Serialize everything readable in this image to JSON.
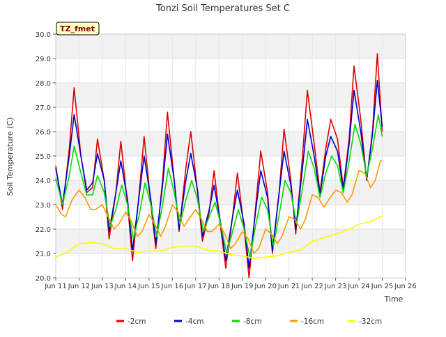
{
  "chart_data": {
    "type": "line",
    "title": "Tonzi Soil Temperatures Set C",
    "xlabel": "Time",
    "ylabel": "Soil Temperature (C)",
    "badge": "TZ_fmet",
    "ylim": [
      20.0,
      30.0
    ],
    "xlim": [
      11,
      26
    ],
    "y_ticks": [
      "20.0",
      "21.0",
      "22.0",
      "23.0",
      "24.0",
      "25.0",
      "26.0",
      "27.0",
      "28.0",
      "29.0",
      "30.0"
    ],
    "x_ticks": [
      {
        "value": 11,
        "label": "Jun 11"
      },
      {
        "value": 12,
        "label": "Jun 12"
      },
      {
        "value": 13,
        "label": "Jun 13"
      },
      {
        "value": 14,
        "label": "Jun 14"
      },
      {
        "value": 15,
        "label": "Jun 15"
      },
      {
        "value": 16,
        "label": "Jun 16"
      },
      {
        "value": 17,
        "label": "Jun 17"
      },
      {
        "value": 18,
        "label": "Jun 18"
      },
      {
        "value": 19,
        "label": "Jun 19"
      },
      {
        "value": 20,
        "label": "Jun 20"
      },
      {
        "value": 21,
        "label": "Jun 21"
      },
      {
        "value": 22,
        "label": "Jun 22"
      },
      {
        "value": 23,
        "label": "Jun 23"
      },
      {
        "value": 24,
        "label": "Jun 24"
      },
      {
        "value": 25,
        "label": "Jun 25"
      },
      {
        "value": 26,
        "label": "Jun 26"
      }
    ],
    "grid": true,
    "legend_position": "bottom-center",
    "series": [
      {
        "name": "-2cm",
        "color": "#dd0000",
        "points": [
          [
            11.0,
            24.6
          ],
          [
            11.29,
            22.8
          ],
          [
            11.58,
            25.3
          ],
          [
            11.79,
            27.8
          ],
          [
            12.08,
            25.0
          ],
          [
            12.33,
            23.5
          ],
          [
            12.58,
            23.7
          ],
          [
            12.79,
            25.7
          ],
          [
            13.08,
            24.0
          ],
          [
            13.29,
            21.6
          ],
          [
            13.58,
            23.5
          ],
          [
            13.79,
            25.6
          ],
          [
            14.08,
            23.0
          ],
          [
            14.29,
            20.7
          ],
          [
            14.58,
            23.5
          ],
          [
            14.79,
            25.8
          ],
          [
            15.08,
            23.0
          ],
          [
            15.29,
            21.2
          ],
          [
            15.58,
            24.0
          ],
          [
            15.79,
            26.8
          ],
          [
            16.08,
            24.0
          ],
          [
            16.29,
            21.9
          ],
          [
            16.58,
            24.5
          ],
          [
            16.79,
            26.0
          ],
          [
            17.08,
            23.5
          ],
          [
            17.29,
            21.5
          ],
          [
            17.58,
            22.7
          ],
          [
            17.79,
            24.4
          ],
          [
            18.08,
            22.0
          ],
          [
            18.29,
            20.4
          ],
          [
            18.58,
            22.5
          ],
          [
            18.79,
            24.3
          ],
          [
            19.08,
            22.0
          ],
          [
            19.29,
            20.0
          ],
          [
            19.58,
            23.0
          ],
          [
            19.79,
            25.2
          ],
          [
            20.08,
            23.5
          ],
          [
            20.29,
            21.0
          ],
          [
            20.58,
            23.5
          ],
          [
            20.79,
            26.1
          ],
          [
            21.08,
            24.0
          ],
          [
            21.29,
            21.8
          ],
          [
            21.58,
            25.0
          ],
          [
            21.79,
            27.7
          ],
          [
            22.08,
            25.5
          ],
          [
            22.33,
            23.5
          ],
          [
            22.58,
            25.3
          ],
          [
            22.79,
            26.5
          ],
          [
            23.08,
            25.7
          ],
          [
            23.33,
            23.7
          ],
          [
            23.58,
            25.7
          ],
          [
            23.79,
            28.7
          ],
          [
            24.08,
            26.5
          ],
          [
            24.33,
            24.0
          ],
          [
            24.58,
            26.0
          ],
          [
            24.79,
            29.2
          ],
          [
            25.0,
            26.0
          ]
        ]
      },
      {
        "name": "-4cm",
        "color": "#0000cc",
        "points": [
          [
            11.0,
            24.5
          ],
          [
            11.29,
            23.0
          ],
          [
            11.58,
            25.0
          ],
          [
            11.79,
            26.7
          ],
          [
            12.08,
            25.0
          ],
          [
            12.33,
            23.6
          ],
          [
            12.58,
            23.9
          ],
          [
            12.79,
            25.1
          ],
          [
            13.08,
            24.0
          ],
          [
            13.29,
            21.9
          ],
          [
            13.58,
            23.5
          ],
          [
            13.79,
            24.8
          ],
          [
            14.08,
            23.2
          ],
          [
            14.29,
            21.1
          ],
          [
            14.58,
            23.4
          ],
          [
            14.79,
            25.0
          ],
          [
            15.08,
            23.2
          ],
          [
            15.29,
            21.4
          ],
          [
            15.58,
            23.8
          ],
          [
            15.79,
            25.9
          ],
          [
            16.08,
            24.0
          ],
          [
            16.29,
            22.0
          ],
          [
            16.58,
            24.0
          ],
          [
            16.79,
            25.1
          ],
          [
            17.08,
            23.6
          ],
          [
            17.29,
            21.7
          ],
          [
            17.58,
            22.8
          ],
          [
            17.79,
            23.8
          ],
          [
            18.08,
            22.2
          ],
          [
            18.29,
            20.7
          ],
          [
            18.58,
            22.5
          ],
          [
            18.79,
            23.6
          ],
          [
            19.08,
            22.2
          ],
          [
            19.29,
            20.4
          ],
          [
            19.58,
            22.8
          ],
          [
            19.79,
            24.4
          ],
          [
            20.08,
            23.3
          ],
          [
            20.29,
            21.1
          ],
          [
            20.58,
            23.5
          ],
          [
            20.79,
            25.2
          ],
          [
            21.08,
            23.8
          ],
          [
            21.29,
            22.0
          ],
          [
            21.58,
            24.5
          ],
          [
            21.79,
            26.5
          ],
          [
            22.08,
            25.0
          ],
          [
            22.33,
            23.4
          ],
          [
            22.58,
            25.0
          ],
          [
            22.79,
            25.8
          ],
          [
            23.08,
            25.2
          ],
          [
            23.33,
            23.6
          ],
          [
            23.58,
            25.5
          ],
          [
            23.79,
            27.7
          ],
          [
            24.08,
            26.0
          ],
          [
            24.33,
            24.0
          ],
          [
            24.58,
            25.9
          ],
          [
            24.79,
            28.1
          ],
          [
            25.0,
            26.2
          ]
        ]
      },
      {
        "name": "-8cm",
        "color": "#00dd00",
        "points": [
          [
            11.0,
            24.1
          ],
          [
            11.29,
            23.0
          ],
          [
            11.58,
            24.2
          ],
          [
            11.79,
            25.4
          ],
          [
            12.08,
            24.3
          ],
          [
            12.33,
            23.4
          ],
          [
            12.58,
            23.4
          ],
          [
            12.79,
            24.2
          ],
          [
            13.08,
            23.5
          ],
          [
            13.33,
            22.1
          ],
          [
            13.58,
            22.8
          ],
          [
            13.83,
            23.8
          ],
          [
            14.08,
            23.0
          ],
          [
            14.33,
            21.6
          ],
          [
            14.58,
            22.6
          ],
          [
            14.83,
            23.9
          ],
          [
            15.08,
            23.0
          ],
          [
            15.33,
            21.7
          ],
          [
            15.58,
            23.0
          ],
          [
            15.83,
            24.5
          ],
          [
            16.08,
            23.5
          ],
          [
            16.33,
            22.2
          ],
          [
            16.58,
            23.2
          ],
          [
            16.83,
            24.0
          ],
          [
            17.08,
            23.2
          ],
          [
            17.33,
            21.9
          ],
          [
            17.58,
            22.5
          ],
          [
            17.83,
            23.1
          ],
          [
            18.08,
            22.2
          ],
          [
            18.33,
            21.0
          ],
          [
            18.58,
            21.9
          ],
          [
            18.83,
            22.8
          ],
          [
            19.08,
            22.0
          ],
          [
            19.33,
            20.8
          ],
          [
            19.58,
            22.2
          ],
          [
            19.83,
            23.3
          ],
          [
            20.08,
            22.8
          ],
          [
            20.33,
            21.3
          ],
          [
            20.58,
            22.6
          ],
          [
            20.83,
            24.0
          ],
          [
            21.08,
            23.5
          ],
          [
            21.33,
            22.2
          ],
          [
            21.58,
            23.7
          ],
          [
            21.83,
            25.2
          ],
          [
            22.08,
            24.5
          ],
          [
            22.33,
            23.3
          ],
          [
            22.58,
            24.3
          ],
          [
            22.83,
            25.0
          ],
          [
            23.08,
            24.6
          ],
          [
            23.33,
            23.5
          ],
          [
            23.58,
            24.8
          ],
          [
            23.83,
            26.3
          ],
          [
            24.08,
            25.5
          ],
          [
            24.33,
            24.2
          ],
          [
            24.58,
            25.3
          ],
          [
            24.83,
            26.7
          ],
          [
            25.0,
            25.8
          ]
        ]
      },
      {
        "name": "-16cm",
        "color": "#ff9900",
        "points": [
          [
            11.0,
            23.0
          ],
          [
            11.25,
            22.6
          ],
          [
            11.42,
            22.5
          ],
          [
            11.7,
            23.2
          ],
          [
            12.0,
            23.6
          ],
          [
            12.25,
            23.3
          ],
          [
            12.5,
            22.8
          ],
          [
            12.7,
            22.8
          ],
          [
            13.0,
            23.0
          ],
          [
            13.25,
            22.5
          ],
          [
            13.5,
            22.0
          ],
          [
            13.7,
            22.2
          ],
          [
            14.0,
            22.7
          ],
          [
            14.25,
            22.3
          ],
          [
            14.5,
            21.7
          ],
          [
            14.7,
            21.9
          ],
          [
            15.0,
            22.6
          ],
          [
            15.25,
            22.2
          ],
          [
            15.5,
            21.7
          ],
          [
            15.7,
            22.1
          ],
          [
            16.0,
            23.0
          ],
          [
            16.25,
            22.7
          ],
          [
            16.5,
            22.1
          ],
          [
            16.7,
            22.4
          ],
          [
            17.0,
            22.8
          ],
          [
            17.25,
            22.4
          ],
          [
            17.5,
            21.9
          ],
          [
            17.7,
            21.9
          ],
          [
            18.0,
            22.2
          ],
          [
            18.25,
            21.8
          ],
          [
            18.5,
            21.2
          ],
          [
            18.7,
            21.4
          ],
          [
            19.0,
            21.9
          ],
          [
            19.25,
            21.6
          ],
          [
            19.5,
            21.0
          ],
          [
            19.7,
            21.2
          ],
          [
            20.0,
            22.0
          ],
          [
            20.25,
            21.8
          ],
          [
            20.5,
            21.4
          ],
          [
            20.7,
            21.7
          ],
          [
            21.0,
            22.5
          ],
          [
            21.25,
            22.4
          ],
          [
            21.5,
            22.0
          ],
          [
            21.7,
            22.4
          ],
          [
            22.0,
            23.4
          ],
          [
            22.25,
            23.3
          ],
          [
            22.5,
            22.9
          ],
          [
            22.7,
            23.2
          ],
          [
            23.0,
            23.6
          ],
          [
            23.25,
            23.5
          ],
          [
            23.5,
            23.1
          ],
          [
            23.7,
            23.4
          ],
          [
            24.0,
            24.4
          ],
          [
            24.25,
            24.3
          ],
          [
            24.5,
            23.7
          ],
          [
            24.7,
            24.0
          ],
          [
            24.92,
            24.8
          ],
          [
            25.0,
            24.8
          ]
        ]
      },
      {
        "name": "-32cm",
        "color": "#ffff00",
        "points": [
          [
            11.0,
            20.85
          ],
          [
            11.5,
            21.05
          ],
          [
            12.0,
            21.4
          ],
          [
            12.5,
            21.45
          ],
          [
            13.0,
            21.4
          ],
          [
            13.5,
            21.2
          ],
          [
            14.0,
            21.2
          ],
          [
            14.5,
            21.05
          ],
          [
            15.0,
            21.1
          ],
          [
            15.5,
            21.1
          ],
          [
            16.0,
            21.25
          ],
          [
            16.5,
            21.3
          ],
          [
            17.0,
            21.3
          ],
          [
            17.5,
            21.15
          ],
          [
            18.0,
            21.1
          ],
          [
            18.5,
            20.95
          ],
          [
            19.0,
            20.9
          ],
          [
            19.5,
            20.8
          ],
          [
            20.0,
            20.85
          ],
          [
            20.5,
            20.9
          ],
          [
            21.0,
            21.05
          ],
          [
            21.5,
            21.15
          ],
          [
            22.0,
            21.5
          ],
          [
            22.5,
            21.65
          ],
          [
            23.0,
            21.8
          ],
          [
            23.5,
            21.95
          ],
          [
            24.0,
            22.2
          ],
          [
            24.5,
            22.3
          ],
          [
            25.0,
            22.55
          ]
        ]
      }
    ]
  }
}
